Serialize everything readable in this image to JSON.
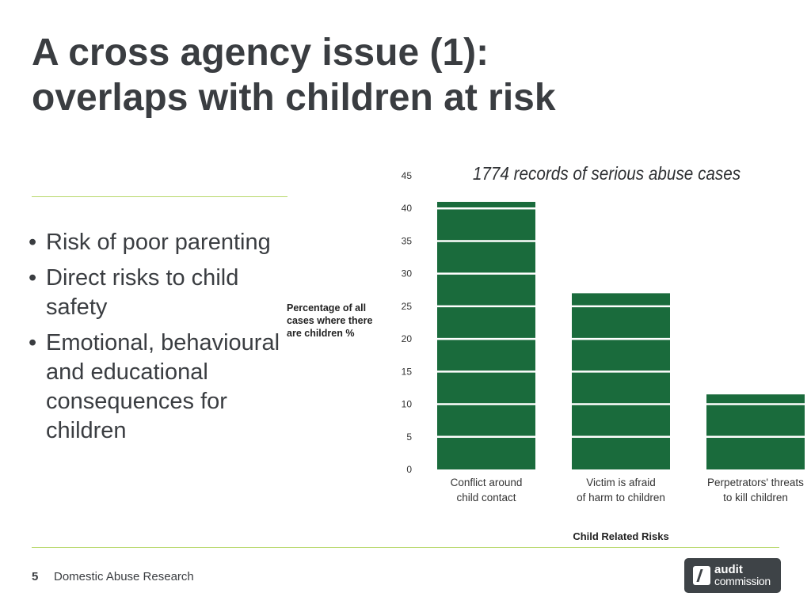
{
  "slide": {
    "title_lines": [
      "A cross agency issue (1):",
      "overlaps with children at risk"
    ],
    "bullets": [
      "Risk of poor parenting",
      "Direct risks to child safety",
      "Emotional, behavioural and educational consequences for children"
    ],
    "bullet_glyph": "•",
    "footer": {
      "page_number": "5",
      "text": "Domestic Abuse Research"
    },
    "logo": {
      "line1": "audit",
      "line2": "commission"
    },
    "colors": {
      "bar": "#1a6b3c",
      "rule": "#b7d86a",
      "title": "#3a3d41",
      "logo_bg": "#3e4347"
    }
  },
  "chart_data": {
    "type": "bar",
    "caption": "1774 records  of serious abuse cases",
    "ylabel_lines": [
      "Percentage of all",
      "cases where there",
      "are children %"
    ],
    "xlabel": "Child Related Risks",
    "categories": [
      [
        "Conflict around",
        "child contact"
      ],
      [
        "Victim is afraid",
        "of harm to children"
      ],
      [
        "Perpetrators' threats",
        "to kill children"
      ]
    ],
    "values": [
      41,
      27,
      11.5
    ],
    "yticks": [
      "0",
      "5",
      "10",
      "15",
      "20",
      "25",
      "30",
      "35",
      "40",
      "45"
    ],
    "ylim": [
      0,
      45
    ],
    "ystep": 5,
    "grid": "white lines across bars every 5 units",
    "legend": "none"
  }
}
